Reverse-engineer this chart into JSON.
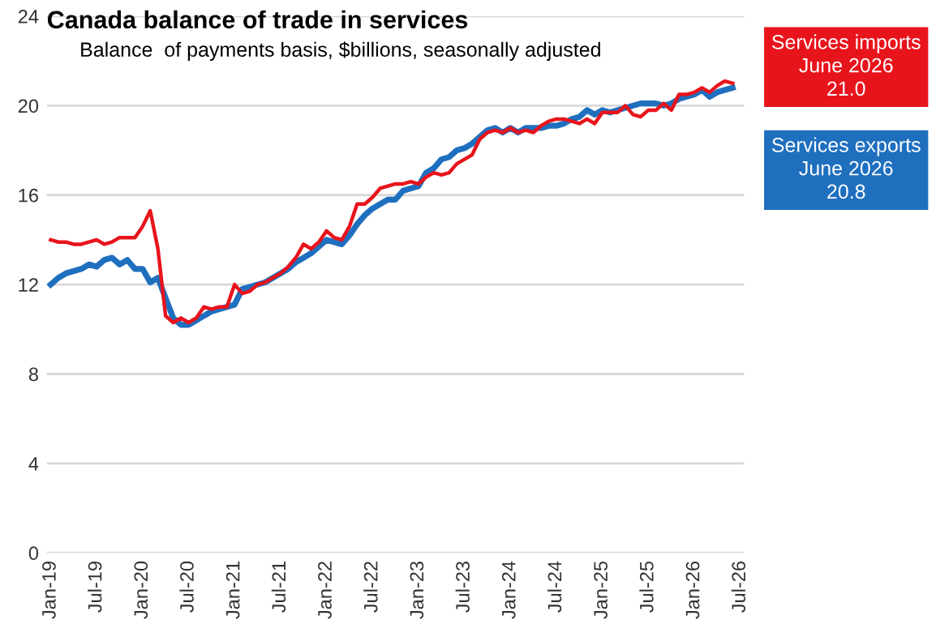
{
  "chart_data": {
    "type": "line",
    "title": "Canada balance of trade in services",
    "subtitle": "Balance  of payments basis, $billions, seasonally adjusted",
    "categories": [
      "Jan-19",
      null,
      null,
      null,
      null,
      null,
      "Jul-19",
      null,
      null,
      null,
      null,
      null,
      "Jan-20",
      null,
      null,
      null,
      null,
      null,
      "Jul-20",
      null,
      null,
      null,
      null,
      null,
      "Jan-21",
      null,
      null,
      null,
      null,
      null,
      "Jul-21",
      null,
      null,
      null,
      null,
      null,
      "Jan-22",
      null,
      null,
      null,
      null,
      null,
      "Jul-22",
      null,
      null,
      null,
      null,
      null,
      "Jan-23",
      null,
      null,
      null,
      null,
      null,
      "Jul-23",
      null,
      null,
      null,
      null,
      null,
      "Jan-24",
      null,
      null,
      null,
      null,
      null,
      "Jul-24",
      null,
      null,
      null,
      null,
      null,
      "Jan-25",
      null,
      null,
      null,
      null,
      null,
      "Jul-25",
      null,
      null,
      null,
      null,
      null,
      "Jan-26",
      null,
      null,
      null,
      null,
      null,
      "Jul-26"
    ],
    "series": [
      {
        "name": "Services imports",
        "color": "#e8141c",
        "values": [
          14.0,
          13.9,
          13.9,
          13.8,
          13.8,
          13.9,
          14.0,
          13.8,
          13.9,
          14.1,
          14.1,
          14.1,
          14.6,
          15.3,
          13.6,
          10.6,
          10.3,
          10.5,
          10.3,
          10.5,
          11.0,
          10.9,
          11.0,
          11.0,
          12.0,
          11.6,
          11.7,
          12.0,
          12.1,
          12.3,
          12.5,
          12.8,
          13.2,
          13.8,
          13.6,
          13.9,
          14.4,
          14.1,
          14.0,
          14.6,
          15.6,
          15.6,
          15.9,
          16.3,
          16.4,
          16.5,
          16.5,
          16.6,
          16.5,
          16.8,
          17.0,
          16.9,
          17.0,
          17.4,
          17.6,
          17.8,
          18.5,
          18.8,
          18.9,
          18.8,
          19.0,
          18.8,
          18.9,
          18.8,
          19.1,
          19.3,
          19.4,
          19.4,
          19.3,
          19.2,
          19.4,
          19.2,
          19.7,
          19.7,
          19.7,
          20.0,
          19.6,
          19.5,
          19.8,
          19.8,
          20.1,
          19.8,
          20.5,
          20.5,
          20.6,
          20.8,
          20.6,
          20.9,
          21.1,
          21.0,
          null
        ]
      },
      {
        "name": "Services exports",
        "color": "#1f6fbf",
        "values": [
          12.0,
          12.3,
          12.5,
          12.6,
          12.7,
          12.9,
          12.8,
          13.1,
          13.2,
          12.9,
          13.1,
          12.7,
          12.7,
          12.1,
          12.3,
          11.4,
          10.5,
          10.2,
          10.2,
          10.4,
          10.6,
          10.8,
          10.9,
          11.0,
          11.1,
          11.8,
          11.9,
          12.0,
          12.1,
          12.3,
          12.5,
          12.7,
          13.0,
          13.2,
          13.4,
          13.7,
          14.0,
          13.9,
          13.8,
          14.2,
          14.7,
          15.1,
          15.4,
          15.6,
          15.8,
          15.8,
          16.2,
          16.3,
          16.4,
          17.0,
          17.2,
          17.6,
          17.7,
          18.0,
          18.1,
          18.3,
          18.6,
          18.9,
          19.0,
          18.8,
          19.0,
          18.8,
          19.0,
          19.0,
          19.0,
          19.1,
          19.1,
          19.2,
          19.4,
          19.5,
          19.8,
          19.6,
          19.8,
          19.7,
          19.8,
          19.9,
          20.0,
          20.1,
          20.1,
          20.1,
          20.0,
          20.1,
          20.3,
          20.4,
          20.5,
          20.7,
          20.4,
          20.6,
          20.7,
          20.8,
          null
        ]
      }
    ],
    "annotations": [
      "June 2026\n21.0",
      "June 2026\n20.8"
    ],
    "ylim": [
      0,
      24
    ],
    "yticks": [
      0,
      4,
      8,
      12,
      16,
      20,
      24
    ],
    "grid": "y",
    "legend": "top right"
  }
}
